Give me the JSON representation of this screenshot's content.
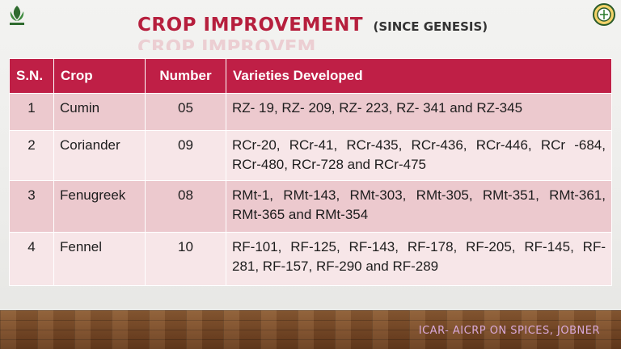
{
  "header": {
    "title": "CROP IMPROVEMENT",
    "subtitle": "(SINCE GENESIS)"
  },
  "table": {
    "columns": [
      "S.N.",
      "Crop",
      "Number",
      "Varieties Developed"
    ],
    "rows": [
      {
        "sn": "1",
        "crop": "Cumin",
        "number": "05",
        "varieties": "RZ- 19, RZ- 209, RZ- 223,  RZ- 341 and RZ-345"
      },
      {
        "sn": "2",
        "crop": "Coriander",
        "number": "09",
        "varieties": "RCr-20, RCr-41, RCr-435, RCr-436, RCr-446, RCr -684, RCr-480, RCr-728 and RCr-475"
      },
      {
        "sn": "3",
        "crop": "Fenugreek",
        "number": "08",
        "varieties": "RMt-1, RMt-143, RMt-303, RMt-305, RMt-351, RMt-361, RMt-365 and RMt-354"
      },
      {
        "sn": "4",
        "crop": "Fennel",
        "number": "10",
        "varieties": "RF-101, RF-125, RF-143, RF-178, RF-205, RF-145, RF- 281, RF-157, RF-290 and RF-289"
      }
    ]
  },
  "footer": {
    "text": "ICAR- AICRP ON SPICES,  JOBNER"
  },
  "colors": {
    "title": "#b61f3d",
    "header_bg": "#bf1f46",
    "row_odd": "#ecc9ce",
    "row_even": "#f7e6e8",
    "footer_text": "#d9a9d9"
  },
  "icons": {
    "left_logo": "icar-emblem-icon",
    "right_logo": "institute-seal-icon"
  }
}
